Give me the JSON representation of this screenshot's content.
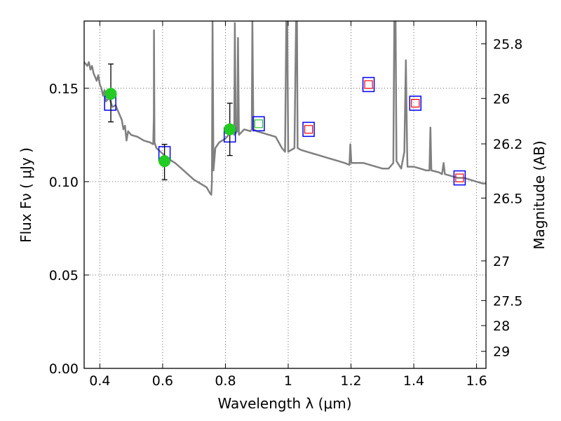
{
  "chart_data": {
    "type": "scatter",
    "xlabel": "Wavelength  λ (μm)",
    "ylabel": "Flux  Fν  ( μJy )",
    "ylabel_right": "Magnitude (AB)",
    "xlim": [
      0.35,
      1.63
    ],
    "ylim": [
      0.0,
      0.186
    ],
    "grid": true,
    "x_ticks": [
      0.4,
      0.6,
      0.8,
      1.0,
      1.2,
      1.4,
      1.6
    ],
    "x_tick_labels": [
      "0.4",
      "0.6",
      "0.8",
      "1",
      "1.2",
      "1.4",
      "1.6"
    ],
    "y_ticks": [
      0.0,
      0.05,
      0.1,
      0.15
    ],
    "y_tick_labels": [
      "0.00",
      "0.05",
      "0.10",
      "0.15"
    ],
    "right_ticks": [
      25.8,
      26.0,
      26.2,
      26.5,
      27.0,
      27.5,
      28.0,
      29.0
    ],
    "right_tick_labels": [
      "25.8",
      "26",
      "26.2",
      "26.5",
      "27",
      "27.5",
      "28",
      "29"
    ],
    "colors": {
      "model": "#808080",
      "observed": "#22cc22",
      "model_box": "#0000ff",
      "inner_green": "#22cc22",
      "inner_red": "#ff0000"
    },
    "observed_points": [
      {
        "x": 0.435,
        "y": 0.147,
        "err_low": 0.132,
        "err_high": 0.163
      },
      {
        "x": 0.606,
        "y": 0.111,
        "err_low": 0.101,
        "err_high": 0.12
      },
      {
        "x": 0.814,
        "y": 0.128,
        "err_low": 0.114,
        "err_high": 0.142
      }
    ],
    "model_boxes": [
      {
        "x": 0.433,
        "y": 0.142,
        "inner": "none"
      },
      {
        "x": 0.606,
        "y": 0.115,
        "inner": "none"
      },
      {
        "x": 0.814,
        "y": 0.125,
        "inner": "none"
      },
      {
        "x": 0.906,
        "y": 0.131,
        "inner": "green"
      },
      {
        "x": 1.065,
        "y": 0.128,
        "inner": "red"
      },
      {
        "x": 1.256,
        "y": 0.152,
        "inner": "red"
      },
      {
        "x": 1.405,
        "y": 0.142,
        "inner": "red"
      },
      {
        "x": 1.546,
        "y": 0.102,
        "inner": "red"
      }
    ],
    "model_spectrum": [
      [
        0.35,
        0.164
      ],
      [
        0.36,
        0.162
      ],
      [
        0.365,
        0.164
      ],
      [
        0.37,
        0.16
      ],
      [
        0.375,
        0.162
      ],
      [
        0.38,
        0.158
      ],
      [
        0.385,
        0.156
      ],
      [
        0.39,
        0.154
      ],
      [
        0.395,
        0.157
      ],
      [
        0.4,
        0.152
      ],
      [
        0.405,
        0.15
      ],
      [
        0.41,
        0.146
      ],
      [
        0.415,
        0.149
      ],
      [
        0.42,
        0.143
      ],
      [
        0.43,
        0.145
      ],
      [
        0.44,
        0.14
      ],
      [
        0.45,
        0.141
      ],
      [
        0.46,
        0.137
      ],
      [
        0.47,
        0.133
      ],
      [
        0.475,
        0.128
      ],
      [
        0.48,
        0.13
      ],
      [
        0.485,
        0.122
      ],
      [
        0.49,
        0.127
      ],
      [
        0.5,
        0.125
      ],
      [
        0.52,
        0.124
      ],
      [
        0.54,
        0.122
      ],
      [
        0.56,
        0.121
      ],
      [
        0.57,
        0.12
      ],
      [
        0.572,
        0.135
      ],
      [
        0.5725,
        0.181
      ],
      [
        0.574,
        0.121
      ],
      [
        0.58,
        0.118
      ],
      [
        0.6,
        0.115
      ],
      [
        0.62,
        0.112
      ],
      [
        0.64,
        0.11
      ],
      [
        0.66,
        0.107
      ],
      [
        0.68,
        0.104
      ],
      [
        0.7,
        0.101
      ],
      [
        0.72,
        0.099
      ],
      [
        0.74,
        0.097
      ],
      [
        0.75,
        0.094
      ],
      [
        0.755,
        0.093
      ],
      [
        0.757,
        0.1
      ],
      [
        0.759,
        0.186
      ],
      [
        0.762,
        0.106
      ],
      [
        0.768,
        0.118
      ],
      [
        0.78,
        0.121
      ],
      [
        0.79,
        0.122
      ],
      [
        0.8,
        0.123
      ],
      [
        0.81,
        0.125
      ],
      [
        0.82,
        0.126
      ],
      [
        0.825,
        0.127
      ],
      [
        0.828,
        0.125
      ],
      [
        0.83,
        0.185
      ],
      [
        0.833,
        0.126
      ],
      [
        0.838,
        0.127
      ],
      [
        0.84,
        0.177
      ],
      [
        0.843,
        0.125
      ],
      [
        0.86,
        0.128
      ],
      [
        0.88,
        0.127
      ],
      [
        0.884,
        0.128
      ],
      [
        0.886,
        0.186
      ],
      [
        0.889,
        0.128
      ],
      [
        0.9,
        0.127
      ],
      [
        0.92,
        0.126
      ],
      [
        0.94,
        0.125
      ],
      [
        0.96,
        0.124
      ],
      [
        0.98,
        0.118
      ],
      [
        0.99,
        0.116
      ],
      [
        0.994,
        0.186
      ],
      [
        0.997,
        0.186
      ],
      [
        1.0,
        0.116
      ],
      [
        1.02,
        0.118
      ],
      [
        1.025,
        0.186
      ],
      [
        1.028,
        0.186
      ],
      [
        1.03,
        0.118
      ],
      [
        1.04,
        0.117
      ],
      [
        1.06,
        0.116
      ],
      [
        1.08,
        0.115
      ],
      [
        1.1,
        0.114
      ],
      [
        1.12,
        0.113
      ],
      [
        1.14,
        0.112
      ],
      [
        1.16,
        0.111
      ],
      [
        1.18,
        0.11
      ],
      [
        1.195,
        0.109
      ],
      [
        1.198,
        0.12
      ],
      [
        1.201,
        0.11
      ],
      [
        1.22,
        0.11
      ],
      [
        1.24,
        0.11
      ],
      [
        1.26,
        0.109
      ],
      [
        1.28,
        0.108
      ],
      [
        1.3,
        0.107
      ],
      [
        1.32,
        0.107
      ],
      [
        1.335,
        0.11
      ],
      [
        1.338,
        0.186
      ],
      [
        1.342,
        0.186
      ],
      [
        1.345,
        0.111
      ],
      [
        1.36,
        0.107
      ],
      [
        1.37,
        0.116
      ],
      [
        1.375,
        0.165
      ],
      [
        1.379,
        0.116
      ],
      [
        1.38,
        0.108
      ],
      [
        1.4,
        0.108
      ],
      [
        1.42,
        0.107
      ],
      [
        1.44,
        0.106
      ],
      [
        1.45,
        0.106
      ],
      [
        1.453,
        0.129
      ],
      [
        1.456,
        0.106
      ],
      [
        1.48,
        0.105
      ],
      [
        1.49,
        0.104
      ],
      [
        1.495,
        0.11
      ],
      [
        1.499,
        0.104
      ],
      [
        1.52,
        0.103
      ],
      [
        1.54,
        0.102
      ],
      [
        1.56,
        0.102
      ],
      [
        1.58,
        0.101
      ],
      [
        1.6,
        0.1
      ],
      [
        1.62,
        0.099
      ],
      [
        1.63,
        0.099
      ]
    ]
  }
}
